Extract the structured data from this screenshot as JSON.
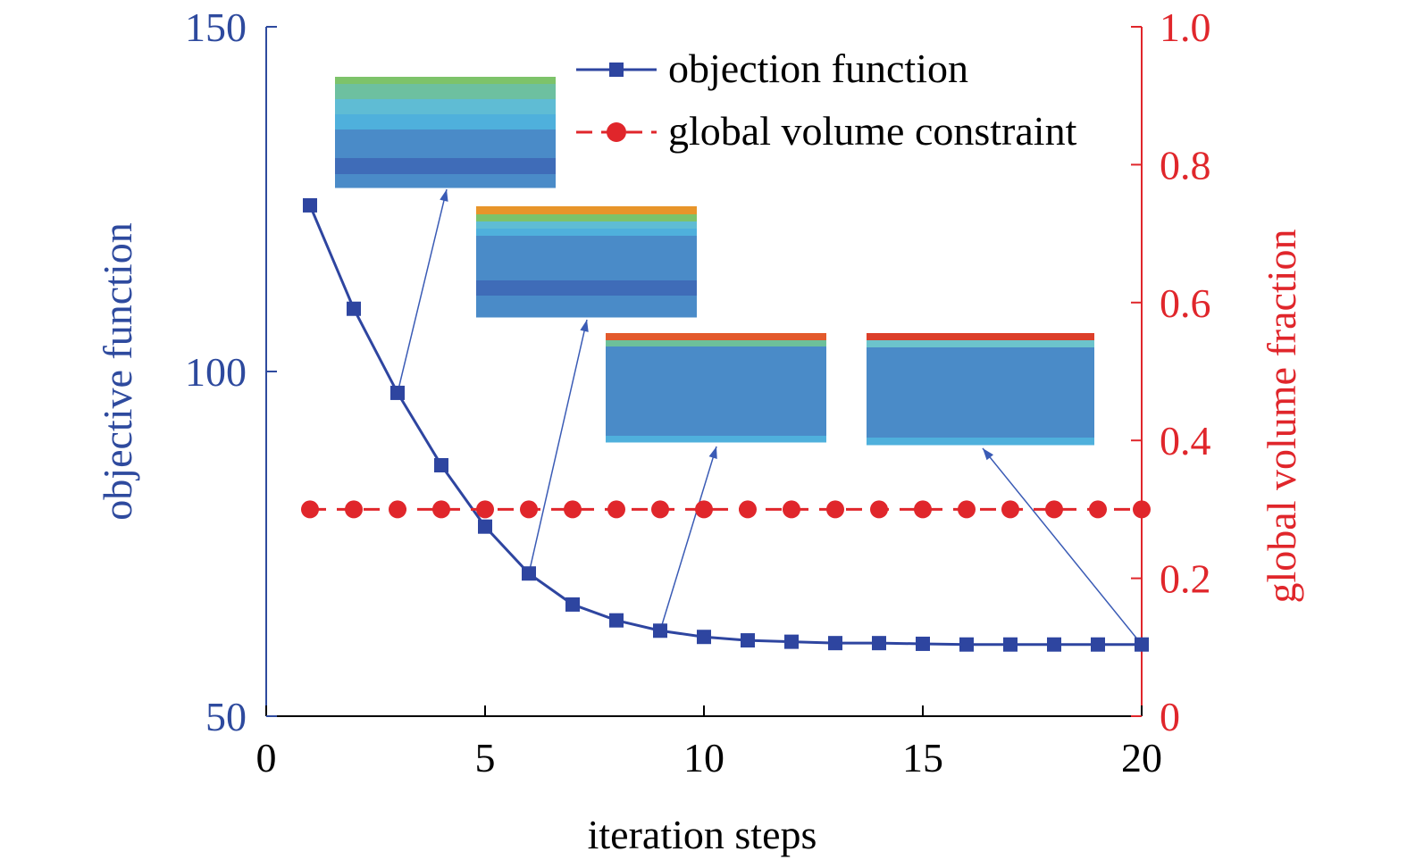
{
  "chart_data": {
    "type": "line",
    "xlabel": "iteration steps",
    "ylabel_left": "objective function",
    "ylabel_right": "global volume fraction",
    "xlim": [
      0,
      20
    ],
    "ylim_left": [
      50,
      150
    ],
    "ylim_right": [
      0,
      1.0
    ],
    "x_ticks": [
      "0",
      "5",
      "10",
      "15",
      "20"
    ],
    "y_left_ticks": [
      "50",
      "100",
      "150"
    ],
    "y_right_ticks": [
      "0",
      "0.2",
      "0.4",
      "0.6",
      "0.8",
      "1.0"
    ],
    "grid": false,
    "legend_placement": "top-right",
    "x": [
      1,
      2,
      3,
      4,
      5,
      6,
      7,
      8,
      9,
      10,
      11,
      12,
      13,
      14,
      15,
      16,
      17,
      18,
      19,
      20
    ],
    "series": [
      {
        "name": "objection function",
        "axis": "left",
        "marker": "square",
        "style": "solid",
        "color": "#2e45a0",
        "values": [
          124.1,
          109.1,
          96.9,
          86.4,
          77.5,
          70.7,
          66.2,
          63.9,
          62.4,
          61.5,
          61.0,
          60.8,
          60.6,
          60.6,
          60.5,
          60.4,
          60.4,
          60.4,
          60.4,
          60.4
        ]
      },
      {
        "name": "global volume constraint",
        "axis": "right",
        "marker": "circle",
        "style": "dashed",
        "color": "#e0262b",
        "values": [
          0.3,
          0.3,
          0.3,
          0.3,
          0.3,
          0.3,
          0.3,
          0.3,
          0.3,
          0.3,
          0.3,
          0.3,
          0.3,
          0.3,
          0.3,
          0.3,
          0.3,
          0.3,
          0.3,
          0.3
        ]
      }
    ],
    "axis_colors": {
      "left": "#2e4a9e",
      "right": "#e0262b",
      "bottom": "#000000"
    },
    "insets": [
      {
        "points_to_step": 3,
        "band_colors": [
          "#7dc36a",
          "#6dc0a0",
          "#5fbcd4",
          "#4fb0dc",
          "#4a8bc8",
          "#3f6cb8",
          "#4a8bc8"
        ]
      },
      {
        "points_to_step": 6,
        "band_colors": [
          "#e8952a",
          "#7dc36a",
          "#5fbcd4",
          "#4fb0dc",
          "#4a8bc8",
          "#3f6cb8",
          "#4a8bc8"
        ]
      },
      {
        "points_to_step": 9,
        "band_colors": [
          "#e35a2c",
          "#6dc09a",
          "#4a8bc8",
          "#4fb0dc"
        ]
      },
      {
        "points_to_step": 20,
        "band_colors": [
          "#dc3f2a",
          "#6cc4cc",
          "#4a8bc8",
          "#4fb0dc"
        ]
      }
    ]
  }
}
